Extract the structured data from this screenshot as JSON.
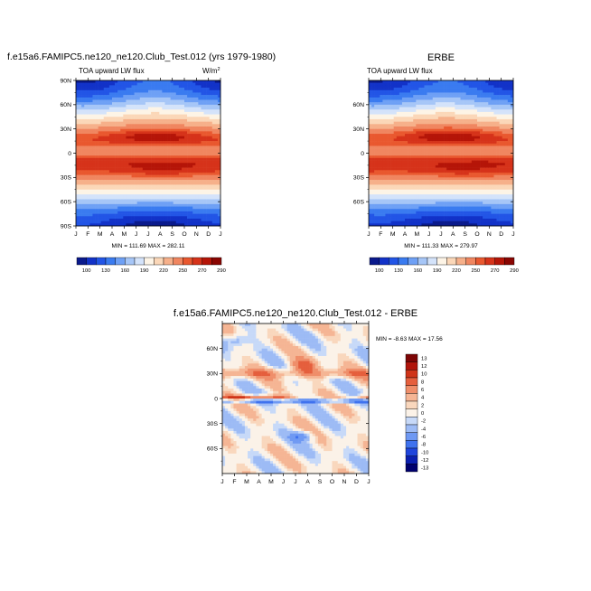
{
  "months": [
    "J",
    "F",
    "M",
    "A",
    "M",
    "J",
    "J",
    "A",
    "S",
    "O",
    "N",
    "D",
    "J"
  ],
  "lat_labels_full": [
    "90N",
    "60N",
    "30N",
    "0",
    "30S",
    "60S",
    "90S"
  ],
  "lat_labels_inner": [
    "60N",
    "30N",
    "0",
    "30S",
    "60S"
  ],
  "fill_palette": [
    "#0a1a8c",
    "#1232c8",
    "#2255e6",
    "#3a7bf0",
    "#6ea0f5",
    "#a6c6f7",
    "#d4e3fa",
    "#fdf4e6",
    "#fbd7b8",
    "#f6b08a",
    "#f08660",
    "#e9582f",
    "#d6331a",
    "#b51508",
    "#8a0602"
  ],
  "diff_palette": [
    "#00006e",
    "#0a1fb0",
    "#1f45dc",
    "#3f72ee",
    "#6f99f3",
    "#9dbbf5",
    "#c7d9f8",
    "#fbf2e8",
    "#f9d7bd",
    "#f5b594",
    "#ef8e6a",
    "#e55f3d",
    "#cf3418",
    "#b0140a",
    "#7d0505"
  ],
  "charts": {
    "c1": {
      "title": "f.e15a6.FAMIPC5.ne120_ne120.Club_Test.012 (yrs 1979-1980)",
      "left_label": "TOA upward LW flux",
      "units": "W/m",
      "units_sup": "2",
      "minmax": "MIN = 111.69  MAX = 282.11",
      "colorbar_labels": [
        "100",
        "130",
        "160",
        "190",
        "220",
        "250",
        "270",
        "290"
      ]
    },
    "c2": {
      "title": "ERBE",
      "left_label": "TOA upward LW flux",
      "minmax": "MIN = 111.33  MAX = 279.97",
      "colorbar_labels": [
        "100",
        "130",
        "160",
        "190",
        "220",
        "250",
        "270",
        "290"
      ]
    },
    "c3": {
      "title": "f.e15a6.FAMIPC5.ne120_ne120.Club_Test.012 - ERBE",
      "minmax": "MIN =  -8.63  MAX =  17.56",
      "colorbar_labels": [
        "13",
        "12",
        "10",
        "8",
        "6",
        "4",
        "2",
        "0",
        "-2",
        "-4",
        "-6",
        "-8",
        "-10",
        "-12",
        "-13"
      ]
    }
  },
  "chart_data": [
    {
      "type": "heatmap",
      "title": "f.e15a6.FAMIPC5.ne120_ne120.Club_Test.012 (yrs 1979-1980)",
      "subtitle": "TOA upward LW flux",
      "units": "W/m2",
      "x": [
        "J",
        "F",
        "M",
        "A",
        "M",
        "J",
        "J",
        "A",
        "S",
        "O",
        "N",
        "D",
        "J"
      ],
      "y": [
        "90N",
        "60N",
        "30N",
        "0",
        "30S",
        "60S",
        "90S"
      ],
      "min": 111.69,
      "max": 282.11,
      "colorbar_levels": [
        100,
        130,
        160,
        190,
        220,
        250,
        270,
        290
      ]
    },
    {
      "type": "heatmap",
      "title": "ERBE",
      "subtitle": "TOA upward LW flux",
      "x": [
        "J",
        "F",
        "M",
        "A",
        "M",
        "J",
        "J",
        "A",
        "S",
        "O",
        "N",
        "D",
        "J"
      ],
      "y": [
        "60N",
        "30N",
        "0",
        "30S",
        "60S"
      ],
      "min": 111.33,
      "max": 279.97,
      "colorbar_levels": [
        100,
        130,
        160,
        190,
        220,
        250,
        270,
        290
      ]
    },
    {
      "type": "heatmap",
      "title": "f.e15a6.FAMIPC5.ne120_ne120.Club_Test.012 - ERBE",
      "x": [
        "J",
        "F",
        "M",
        "A",
        "M",
        "J",
        "J",
        "A",
        "S",
        "O",
        "N",
        "D",
        "J"
      ],
      "y": [
        "60N",
        "30N",
        "0",
        "30S",
        "60S"
      ],
      "min": -8.63,
      "max": 17.56,
      "colorbar_levels": [
        13,
        12,
        10,
        8,
        6,
        4,
        2,
        0,
        -2,
        -4,
        -6,
        -8,
        -10,
        -12,
        -13
      ]
    }
  ]
}
